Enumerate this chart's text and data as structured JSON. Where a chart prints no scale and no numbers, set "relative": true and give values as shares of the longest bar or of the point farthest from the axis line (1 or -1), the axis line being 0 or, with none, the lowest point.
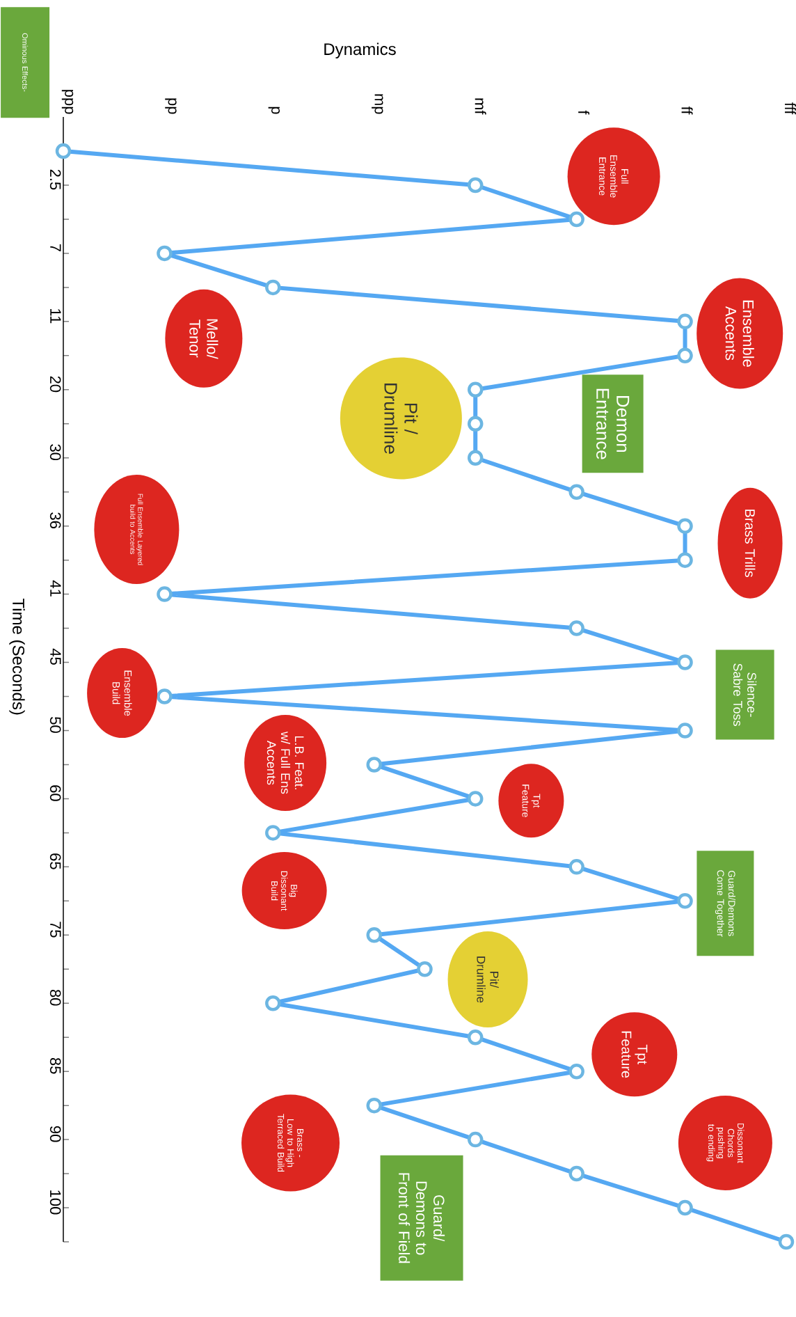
{
  "chart_data": {
    "type": "line",
    "orientation": "horizontal",
    "relative": true,
    "xlabel": "Dynamics",
    "ylabel": "Time (Seconds)",
    "categories": [
      null,
      "2.5",
      null,
      "7",
      null,
      "11",
      null,
      "20",
      null,
      "30",
      null,
      "36",
      null,
      "41",
      null,
      "45",
      null,
      "50",
      null,
      "60",
      null,
      "65",
      null,
      "75",
      null,
      "80",
      null,
      "85",
      null,
      "90",
      null,
      "100",
      null
    ],
    "values": [
      0,
      0.57,
      0.71,
      0.14,
      0.29,
      0.86,
      0.86,
      0.57,
      0.57,
      0.57,
      0.71,
      0.86,
      0.86,
      0.14,
      0.71,
      0.86,
      0.14,
      0.86,
      0.43,
      0.57,
      0.29,
      0.71,
      0.86,
      0.43,
      0.5,
      0.29,
      0.57,
      0.71,
      0.43,
      0.57,
      0.71,
      0.86,
      1
    ],
    "color": "#55a8f2",
    "marker": "circle",
    "annotations": [
      "Full Ensemble Entrance",
      "Ensemble Accents",
      "Mello/ Tenor",
      "Demon Entrance",
      "Pit / Drumline",
      "Brass Trills",
      "Full Ensemble Layered build to Accents",
      "Ensemble Build",
      "Silence- Sabre Toss",
      "L.B. Feat. w/ Full Ens Accents",
      "Tpt Feature",
      "Guard/Demons Come Together",
      "Big Dissonant Build",
      "Pit/ Drumline",
      "Tpt Feature",
      "Dissonant Chords pushing to ending",
      "Brass - Low to High Terraced Build",
      "Guard/ Demons to Front of Field",
      "Ominous Effects-",
      "ppp",
      "pp",
      "p",
      "mp",
      "mf",
      "f",
      "ff",
      "fff"
    ]
  }
}
